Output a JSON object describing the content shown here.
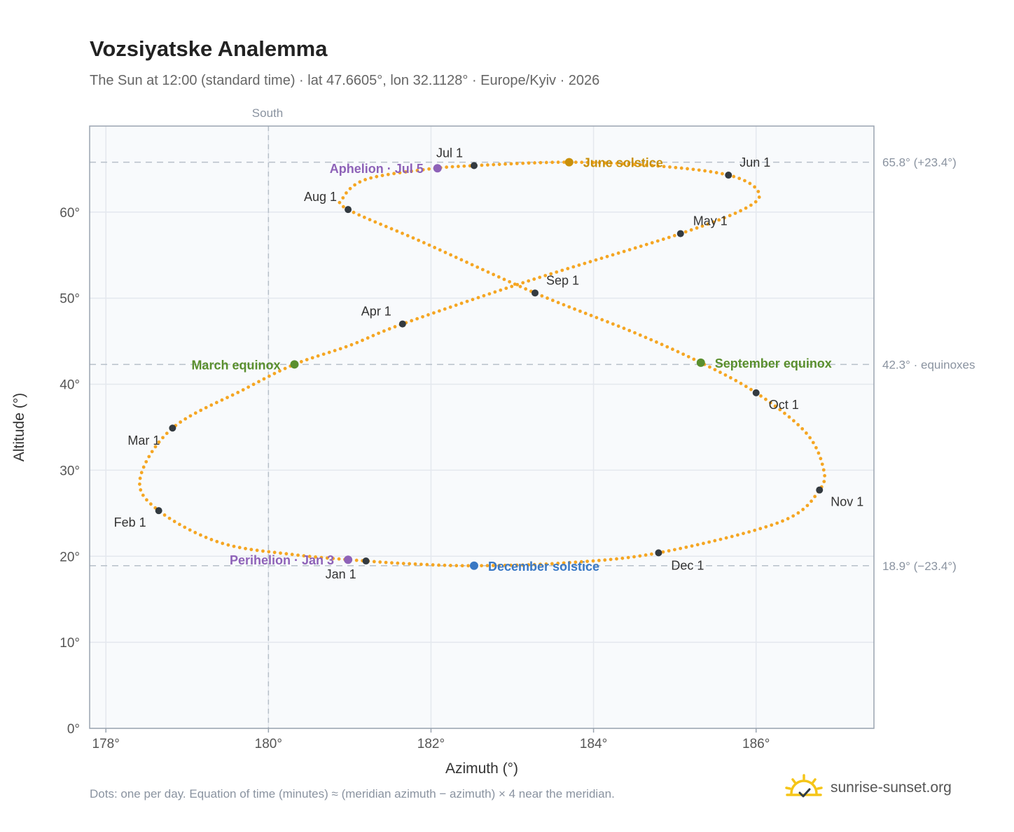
{
  "title": "Vozsiyatske Analemma",
  "subtitle": "The Sun at 12:00 (standard time) · lat 47.6605°, lon 32.1128° · Europe/Kyiv · 2026",
  "footnote": "Dots: one per day. Equation of time (minutes) ≈ (meridian azimuth − azimuth) × 4 near the meridian.",
  "brand": "sunrise-sunset.org",
  "colors": {
    "curve": "#f5a623",
    "month_marker": "#333a40",
    "equinox": "#5a8f2e",
    "june_solstice": "#c9900a",
    "december_solstice": "#3a78c4",
    "apsis": "#8e62b8",
    "grid": "#e4e8ee",
    "plot_bg": "#f8fafc",
    "reference_line": "#b7c0c9"
  },
  "chart_data": {
    "type": "scatter",
    "xlabel": "Azimuth (°)",
    "ylabel": "Altitude (°)",
    "xlim": [
      177.8,
      187.45
    ],
    "ylim": [
      0,
      70
    ],
    "x_ticks": [
      178,
      180,
      182,
      184,
      186
    ],
    "x_tick_labels": [
      "178°",
      "180°",
      "182°",
      "184°",
      "186°"
    ],
    "y_ticks": [
      0,
      10,
      20,
      30,
      40,
      50,
      60
    ],
    "y_tick_labels": [
      "0°",
      "10°",
      "20°",
      "30°",
      "40°",
      "50°",
      "60°"
    ],
    "grid": true,
    "meridian": {
      "x": 180,
      "label": "South"
    },
    "reference_lines": [
      {
        "y": 65.8,
        "label": "65.8° (+23.4°)"
      },
      {
        "y": 42.3,
        "label": "42.3° · equinoxes"
      },
      {
        "y": 18.9,
        "label": "18.9° (−23.4°)"
      }
    ],
    "path_anchors": [
      {
        "x": 182.53,
        "y": 18.9
      },
      {
        "x": 181.8,
        "y": 19.1
      },
      {
        "x": 181.2,
        "y": 19.45
      },
      {
        "x": 180.3,
        "y": 20.2
      },
      {
        "x": 179.4,
        "y": 21.6
      },
      {
        "x": 178.65,
        "y": 25.3
      },
      {
        "x": 178.42,
        "y": 29.0
      },
      {
        "x": 178.82,
        "y": 34.9
      },
      {
        "x": 179.7,
        "y": 39.4
      },
      {
        "x": 180.32,
        "y": 42.3
      },
      {
        "x": 181.0,
        "y": 44.5
      },
      {
        "x": 181.65,
        "y": 47.0
      },
      {
        "x": 183.2,
        "y": 52.0
      },
      {
        "x": 185.07,
        "y": 57.5
      },
      {
        "x": 185.9,
        "y": 60.6
      },
      {
        "x": 186.02,
        "y": 62.5
      },
      {
        "x": 185.66,
        "y": 64.3
      },
      {
        "x": 184.8,
        "y": 65.35
      },
      {
        "x": 183.7,
        "y": 65.8
      },
      {
        "x": 182.53,
        "y": 65.4
      },
      {
        "x": 181.95,
        "y": 64.98
      },
      {
        "x": 181.2,
        "y": 63.8
      },
      {
        "x": 180.92,
        "y": 61.7
      },
      {
        "x": 180.98,
        "y": 60.3
      },
      {
        "x": 181.9,
        "y": 56.5
      },
      {
        "x": 183.28,
        "y": 50.6
      },
      {
        "x": 184.5,
        "y": 46.0
      },
      {
        "x": 185.32,
        "y": 42.5
      },
      {
        "x": 186.0,
        "y": 39.0
      },
      {
        "x": 186.6,
        "y": 34.5
      },
      {
        "x": 186.82,
        "y": 30.5
      },
      {
        "x": 186.78,
        "y": 27.7
      },
      {
        "x": 186.3,
        "y": 24.0
      },
      {
        "x": 184.8,
        "y": 20.4
      },
      {
        "x": 183.6,
        "y": 19.2
      },
      {
        "x": 182.53,
        "y": 18.9
      }
    ],
    "month_markers": [
      {
        "label": "Jan 1",
        "x": 181.2,
        "y": 19.45
      },
      {
        "label": "Feb 1",
        "x": 178.65,
        "y": 25.3
      },
      {
        "label": "Mar 1",
        "x": 178.82,
        "y": 34.9
      },
      {
        "label": "Apr 1",
        "x": 181.65,
        "y": 47.0
      },
      {
        "label": "May 1",
        "x": 185.07,
        "y": 57.5
      },
      {
        "label": "Jun 1",
        "x": 185.66,
        "y": 64.3
      },
      {
        "label": "Jul 1",
        "x": 182.53,
        "y": 65.4
      },
      {
        "label": "Aug 1",
        "x": 180.98,
        "y": 60.3
      },
      {
        "label": "Sep 1",
        "x": 183.28,
        "y": 50.6
      },
      {
        "label": "Oct 1",
        "x": 186.0,
        "y": 39.0
      },
      {
        "label": "Nov 1",
        "x": 186.78,
        "y": 27.7
      },
      {
        "label": "Dec 1",
        "x": 184.8,
        "y": 20.4
      }
    ],
    "events": [
      {
        "label": "March equinox",
        "x": 180.32,
        "y": 42.3,
        "color_key": "equinox"
      },
      {
        "label": "September equinox",
        "x": 185.32,
        "y": 42.5,
        "color_key": "equinox"
      },
      {
        "label": "June solstice",
        "x": 183.7,
        "y": 65.8,
        "color_key": "june_solstice"
      },
      {
        "label": "December solstice",
        "x": 182.53,
        "y": 18.9,
        "color_key": "december_solstice"
      },
      {
        "label": "Aphelion · Jul 5",
        "x": 182.08,
        "y": 65.1,
        "color_key": "apsis"
      },
      {
        "label": "Perihelion · Jan 3",
        "x": 180.98,
        "y": 19.6,
        "color_key": "apsis"
      }
    ]
  }
}
